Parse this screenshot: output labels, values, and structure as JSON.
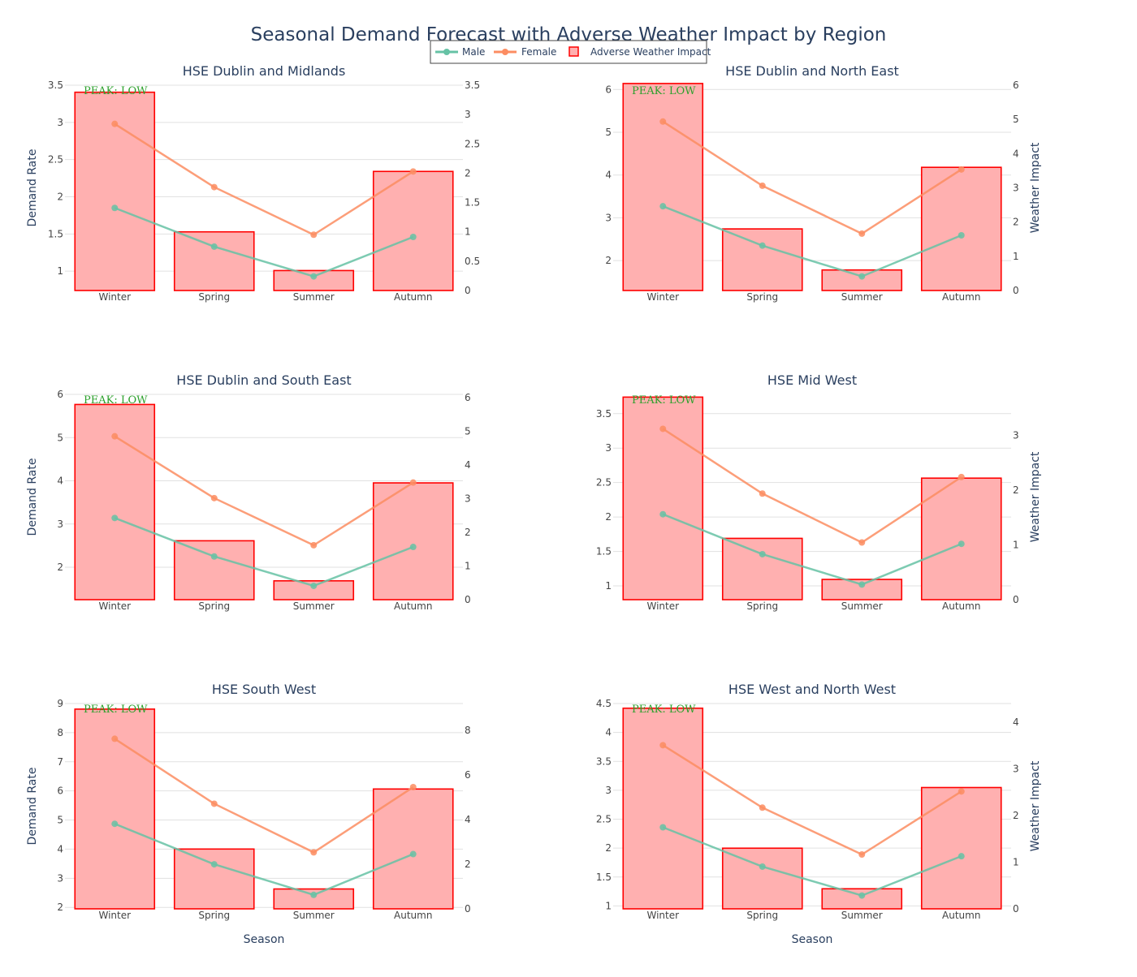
{
  "chart_data": {
    "type": "bar+line",
    "title": "Seasonal Demand Forecast with Adverse Weather Impact by Region",
    "categories": [
      "Winter",
      "Spring",
      "Summer",
      "Autumn"
    ],
    "xlabel": "Season",
    "ylabel": "Demand Rate",
    "y2label": "Weather Impact",
    "legend": {
      "placement": "top-center",
      "entries": [
        "Male",
        "Female",
        "Adverse Weather Impact"
      ]
    },
    "colors": {
      "male": "#66c2a5",
      "female": "#fc8d62",
      "bar_fill": "#ffb0b0",
      "bar_border": "#ff0000",
      "peak_text": "#2ca02c",
      "grid": "#e1e1e1",
      "text": "#2a3f5f"
    },
    "peak_annotation": "PEAK: LOW",
    "panels": [
      {
        "title": "HSE Dublin and Midlands",
        "ylim": [
          0.74,
          3.5
        ],
        "yticks": [
          1,
          1.5,
          2,
          2.5,
          3,
          3.5
        ],
        "y2lim": [
          0,
          3.5
        ],
        "y2ticks": [
          0,
          0.5,
          1,
          1.5,
          2,
          2.5,
          3,
          3.5
        ],
        "show_ylabel": true,
        "show_y2label": false,
        "show_xlabel": false,
        "series": [
          {
            "name": "Male",
            "values": [
              1.85,
              1.33,
              0.93,
              1.46
            ]
          },
          {
            "name": "Female",
            "values": [
              2.98,
              2.13,
              1.49,
              2.34
            ]
          },
          {
            "name": "Adverse Weather Impact",
            "values": [
              3.38,
              1.0,
              0.34,
              2.03
            ]
          }
        ]
      },
      {
        "title": "HSE Dublin and North East",
        "ylim": [
          1.3,
          6.1
        ],
        "yticks": [
          2,
          3,
          4,
          5,
          6
        ],
        "y2lim": [
          0,
          6
        ],
        "y2ticks": [
          0,
          1,
          2,
          3,
          4,
          5,
          6
        ],
        "show_ylabel": false,
        "show_y2label": true,
        "show_xlabel": false,
        "series": [
          {
            "name": "Male",
            "values": [
              3.27,
              2.35,
              1.63,
              2.59
            ]
          },
          {
            "name": "Female",
            "values": [
              5.25,
              3.75,
              2.63,
              4.13
            ]
          },
          {
            "name": "Adverse Weather Impact",
            "values": [
              6.05,
              1.8,
              0.6,
              3.6
            ]
          }
        ]
      },
      {
        "title": "HSE Dublin and South East",
        "ylim": [
          1.25,
          6.0
        ],
        "yticks": [
          2,
          3,
          4,
          5,
          6
        ],
        "y2lim": [
          0,
          6.1
        ],
        "y2ticks": [
          0,
          1,
          2,
          3,
          4,
          5,
          6
        ],
        "show_ylabel": true,
        "show_y2label": false,
        "show_xlabel": false,
        "series": [
          {
            "name": "Male",
            "values": [
              3.14,
              2.25,
              1.57,
              2.47
            ]
          },
          {
            "name": "Female",
            "values": [
              5.03,
              3.6,
              2.51,
              3.96
            ]
          },
          {
            "name": "Adverse Weather Impact",
            "values": [
              5.8,
              1.75,
              0.56,
              3.47
            ]
          }
        ]
      },
      {
        "title": "HSE Mid West",
        "ylim": [
          0.8,
          3.78
        ],
        "yticks": [
          1,
          1.5,
          2,
          2.5,
          3,
          3.5
        ],
        "y2lim": [
          0,
          3.75
        ],
        "y2ticks": [
          0,
          1,
          2,
          3
        ],
        "show_ylabel": false,
        "show_y2label": true,
        "show_xlabel": false,
        "series": [
          {
            "name": "Male",
            "values": [
              2.04,
              1.46,
              1.02,
              1.61
            ]
          },
          {
            "name": "Female",
            "values": [
              3.28,
              2.34,
              1.63,
              2.58
            ]
          },
          {
            "name": "Adverse Weather Impact",
            "values": [
              3.7,
              1.12,
              0.37,
              2.22
            ]
          }
        ]
      },
      {
        "title": "HSE South West",
        "ylim": [
          1.95,
          9.0
        ],
        "yticks": [
          2,
          3,
          4,
          5,
          6,
          7,
          8,
          9
        ],
        "y2lim": [
          0,
          9.2
        ],
        "y2ticks": [
          0,
          2,
          4,
          6,
          8
        ],
        "show_ylabel": true,
        "show_y2label": false,
        "show_xlabel": true,
        "series": [
          {
            "name": "Male",
            "values": [
              4.87,
              3.48,
              2.43,
              3.83
            ]
          },
          {
            "name": "Female",
            "values": [
              7.79,
              5.56,
              3.89,
              6.13
            ]
          },
          {
            "name": "Adverse Weather Impact",
            "values": [
              8.95,
              2.68,
              0.89,
              5.37
            ]
          }
        ]
      },
      {
        "title": "HSE West and North West",
        "ylim": [
          0.95,
          4.5
        ],
        "yticks": [
          1,
          1.5,
          2,
          2.5,
          3,
          3.5,
          4,
          4.5
        ],
        "y2lim": [
          0,
          4.4
        ],
        "y2ticks": [
          0,
          1,
          2,
          3,
          4
        ],
        "show_ylabel": false,
        "show_y2label": true,
        "show_xlabel": true,
        "series": [
          {
            "name": "Male",
            "values": [
              2.36,
              1.68,
              1.18,
              1.86
            ]
          },
          {
            "name": "Female",
            "values": [
              3.78,
              2.7,
              1.89,
              2.98
            ]
          },
          {
            "name": "Adverse Weather Impact",
            "values": [
              4.3,
              1.3,
              0.43,
              2.6
            ]
          }
        ]
      }
    ]
  }
}
